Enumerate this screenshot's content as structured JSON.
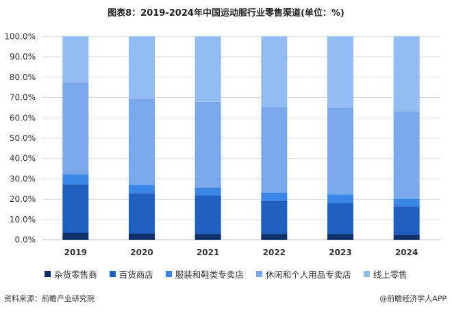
{
  "chart_data": {
    "type": "bar",
    "stacked": true,
    "title": "图表8：2019-2024年中国运动服行业零售渠道(单位：%)",
    "categories": [
      "2019",
      "2020",
      "2021",
      "2022",
      "2023",
      "2024"
    ],
    "ylim": [
      0,
      100
    ],
    "yticks": [
      "0.0%",
      "10.0%",
      "20.0%",
      "30.0%",
      "40.0%",
      "50.0%",
      "60.0%",
      "70.0%",
      "80.0%",
      "90.0%",
      "100.0%"
    ],
    "grid": true,
    "legend_position": "bottom",
    "series": [
      {
        "name": "杂货零售商",
        "color": "#0f2f6b",
        "values": [
          3.6,
          3.1,
          2.9,
          2.9,
          2.9,
          2.6
        ]
      },
      {
        "name": "百货商店",
        "color": "#1f5fbf",
        "values": [
          23.8,
          19.9,
          19.0,
          16.3,
          15.4,
          13.9
        ]
      },
      {
        "name": "服装和鞋类专卖店",
        "color": "#3886e6",
        "values": [
          4.8,
          4.1,
          3.8,
          4.1,
          4.0,
          3.7
        ]
      },
      {
        "name": "休闲和个人用品专卖店",
        "color": "#79a9ec",
        "values": [
          45.2,
          42.2,
          42.2,
          42.2,
          42.7,
          43.0
        ]
      },
      {
        "name": "线上零售",
        "color": "#93bcf3",
        "values": [
          22.6,
          30.7,
          32.1,
          34.5,
          35.0,
          36.8
        ]
      }
    ]
  },
  "footer": {
    "source": "资料来源：前瞻产业研究院",
    "brand": "@前瞻经济学人APP"
  }
}
